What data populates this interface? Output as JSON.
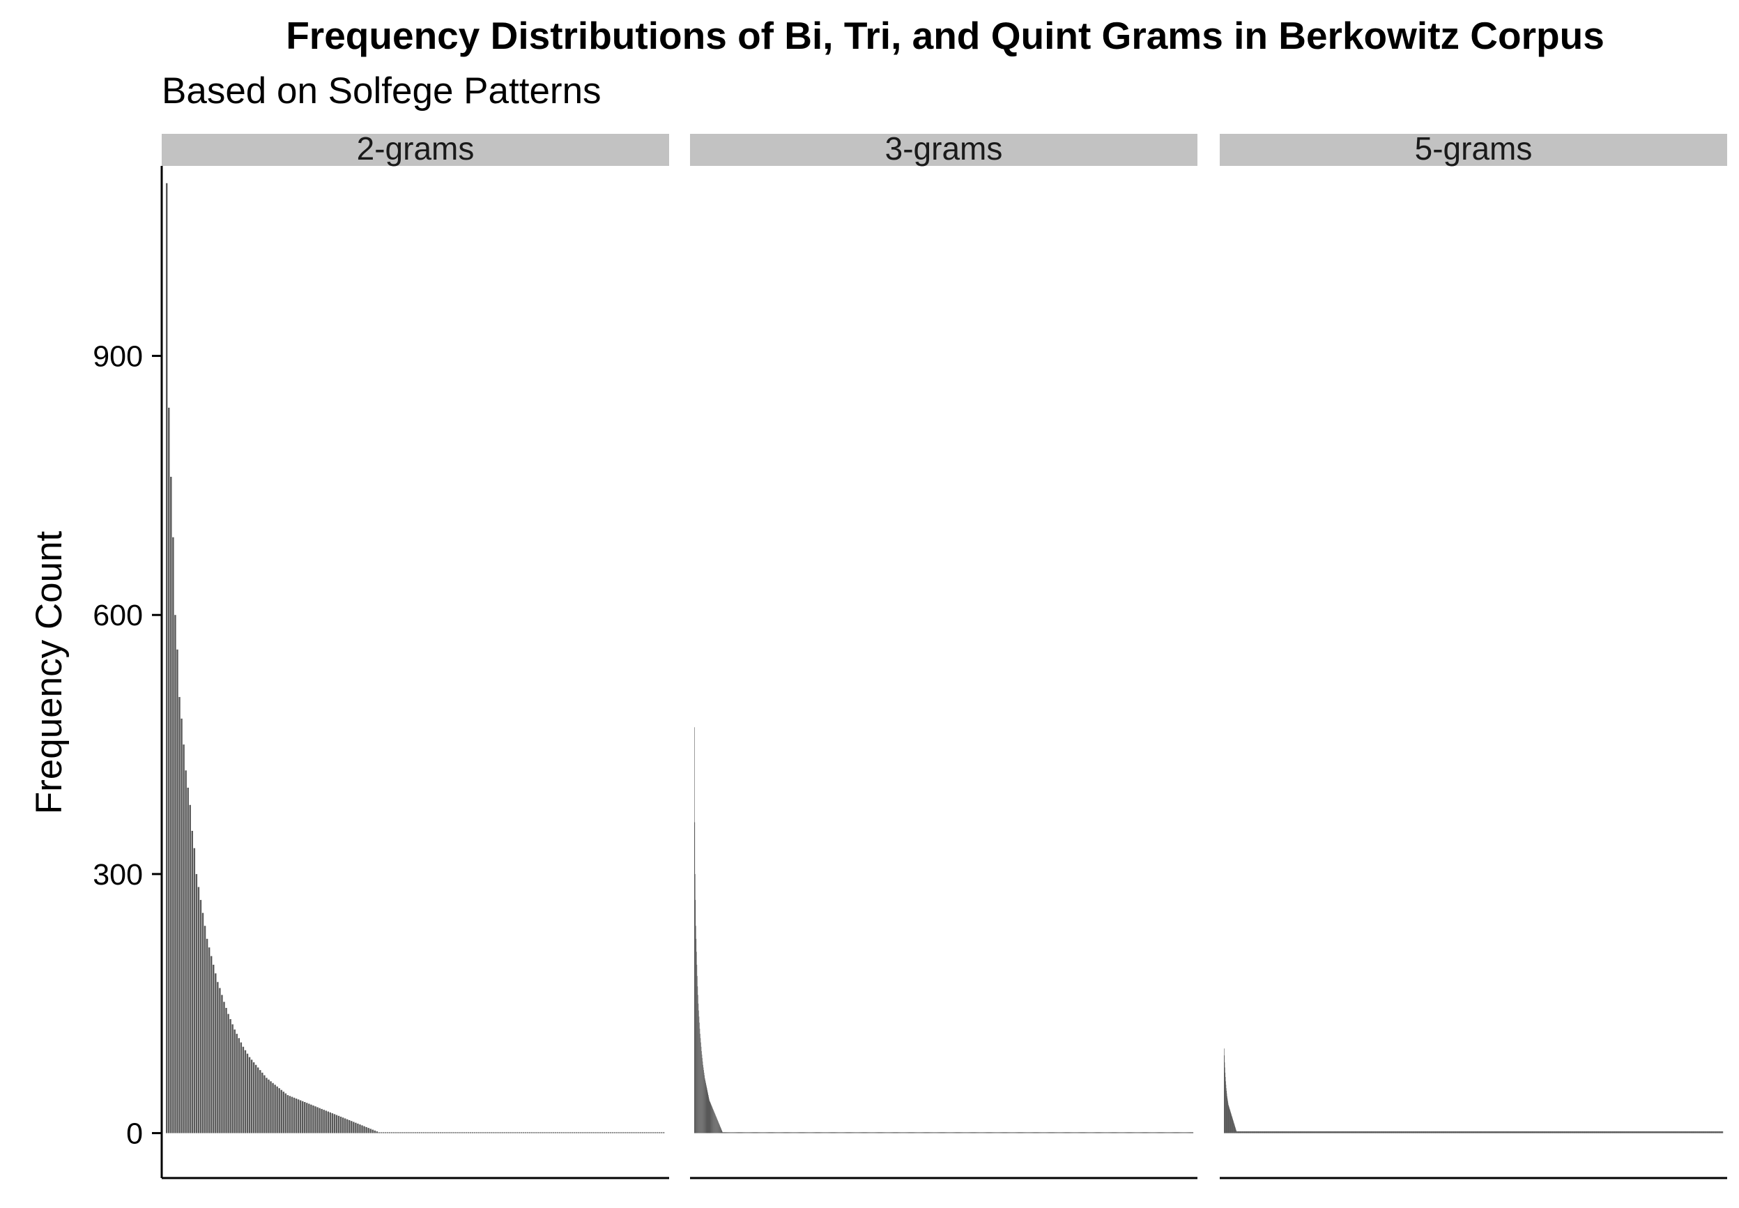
{
  "chart_data": {
    "type": "bar",
    "title": "Frequency Distributions of Bi, Tri, and Quint Grams in Berkowitz Corpus",
    "subtitle": "Based on Solfege Patterns",
    "xlabel": "",
    "ylabel": "Frequency Count",
    "ylim": [
      -52,
      1120
    ],
    "yticks": [
      0,
      300,
      600,
      900
    ],
    "grid": false,
    "legend": "none",
    "bar_color": "#595959",
    "strip_color": "#c2c2c2",
    "facets": [
      {
        "label": "2-grams",
        "n_bars": 235,
        "max": 1100,
        "values_head": [
          1100,
          840,
          760,
          690,
          600,
          560,
          505,
          480,
          450,
          420,
          400,
          380,
          350,
          330,
          300,
          285,
          270,
          255,
          240,
          225,
          215,
          205,
          195,
          185,
          175,
          168,
          160,
          152,
          145,
          138,
          132,
          126,
          120,
          115,
          110,
          105,
          100,
          96,
          92,
          88,
          85,
          82,
          79,
          76,
          73,
          70,
          67,
          64,
          62,
          60,
          58,
          56,
          54,
          52,
          50,
          48,
          46,
          44,
          43,
          42,
          41,
          40,
          39,
          38,
          37,
          36,
          35,
          34,
          33,
          32,
          31,
          30,
          29,
          28,
          27,
          26,
          25,
          24,
          23,
          22,
          21,
          20,
          19,
          18,
          17,
          16,
          15,
          14,
          13,
          12,
          11,
          10,
          9,
          8,
          7,
          6,
          5,
          4,
          3,
          2
        ],
        "tail_value": 1
      },
      {
        "label": "3-grams",
        "n_bars": 1400,
        "max": 470,
        "values_head": [
          470,
          360,
          300,
          270,
          240,
          225,
          210,
          195,
          182,
          170,
          160,
          150,
          142,
          135,
          128,
          121,
          115,
          110,
          105,
          100,
          95,
          91,
          87,
          83,
          79,
          76,
          73,
          70,
          67,
          64,
          62,
          60,
          58,
          56,
          54,
          52,
          50,
          48,
          46,
          44,
          42,
          40,
          38,
          37,
          36,
          35,
          34,
          33,
          32,
          31,
          30,
          29,
          28,
          27,
          26,
          25,
          24,
          23,
          22,
          21,
          20,
          19,
          18,
          17,
          16,
          15,
          14,
          13,
          12,
          11,
          10,
          9,
          8,
          7,
          6,
          5,
          4,
          3,
          2
        ],
        "tail_value": 1
      },
      {
        "label": "5-grams",
        "n_bars": 1900,
        "max": 98,
        "values_head": [
          98,
          90,
          82,
          76,
          70,
          65,
          60,
          56,
          52,
          49,
          46,
          43,
          41,
          39,
          37,
          35,
          33,
          32,
          31,
          30,
          29,
          28,
          27,
          26,
          25,
          24,
          23,
          22,
          21,
          20,
          19,
          18,
          17,
          16,
          15,
          14,
          13,
          12,
          11,
          10,
          9,
          8,
          7,
          6,
          5,
          4,
          3
        ],
        "tail_value": 2
      }
    ]
  }
}
